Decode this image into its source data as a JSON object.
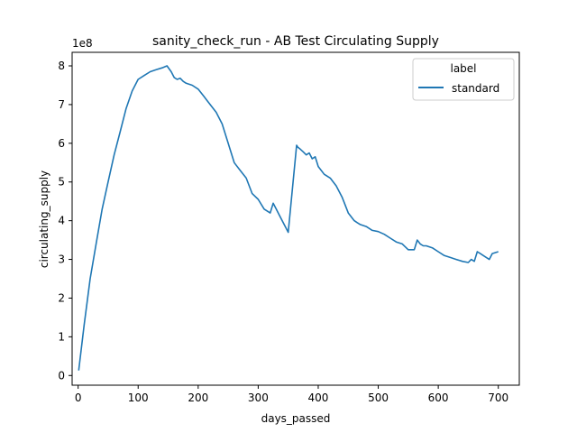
{
  "chart_data": {
    "type": "line",
    "title": "sanity_check_run - AB Test Circulating Supply",
    "xlabel": "days_passed",
    "ylabel": "circulating_supply",
    "y_offset_text": "1e8",
    "xlim": [
      -10,
      735
    ],
    "ylim": [
      -0.25,
      8.35
    ],
    "x_ticks": [
      0,
      100,
      200,
      300,
      400,
      500,
      600,
      700
    ],
    "y_ticks": [
      0,
      1,
      2,
      3,
      4,
      5,
      6,
      7,
      8
    ],
    "legend": {
      "title": "label",
      "position": "top-right"
    },
    "series": [
      {
        "name": "standard",
        "color": "#1f77b4",
        "x": [
          1,
          10,
          20,
          30,
          40,
          50,
          60,
          70,
          80,
          90,
          100,
          110,
          120,
          130,
          140,
          148,
          155,
          160,
          165,
          170,
          175,
          180,
          190,
          200,
          210,
          215,
          220,
          230,
          240,
          250,
          260,
          270,
          280,
          290,
          300,
          310,
          320,
          325,
          330,
          335,
          340,
          350,
          364,
          366,
          370,
          375,
          380,
          385,
          390,
          395,
          400,
          410,
          420,
          430,
          440,
          450,
          460,
          465,
          470,
          480,
          490,
          500,
          510,
          520,
          530,
          540,
          550,
          560,
          565,
          570,
          575,
          580,
          590,
          600,
          610,
          620,
          630,
          640,
          650,
          655,
          660,
          665,
          670,
          675,
          680,
          685,
          690,
          700
        ],
        "y": [
          0.13,
          1.3,
          2.5,
          3.4,
          4.3,
          5.0,
          5.7,
          6.3,
          6.9,
          7.35,
          7.65,
          7.75,
          7.85,
          7.9,
          7.95,
          8.0,
          7.85,
          7.7,
          7.65,
          7.68,
          7.6,
          7.55,
          7.5,
          7.4,
          7.2,
          7.1,
          7.0,
          6.8,
          6.5,
          6.0,
          5.5,
          5.3,
          5.1,
          4.7,
          4.55,
          4.3,
          4.2,
          4.45,
          4.3,
          4.15,
          4.0,
          3.7,
          5.95,
          5.9,
          5.85,
          5.78,
          5.7,
          5.75,
          5.6,
          5.65,
          5.4,
          5.2,
          5.1,
          4.9,
          4.6,
          4.2,
          4.0,
          3.95,
          3.9,
          3.85,
          3.75,
          3.72,
          3.65,
          3.55,
          3.45,
          3.4,
          3.25,
          3.25,
          3.5,
          3.4,
          3.35,
          3.35,
          3.3,
          3.2,
          3.1,
          3.05,
          3.0,
          2.95,
          2.92,
          3.0,
          2.95,
          3.2,
          3.15,
          3.1,
          3.05,
          3.0,
          3.15,
          3.2
        ]
      }
    ]
  }
}
